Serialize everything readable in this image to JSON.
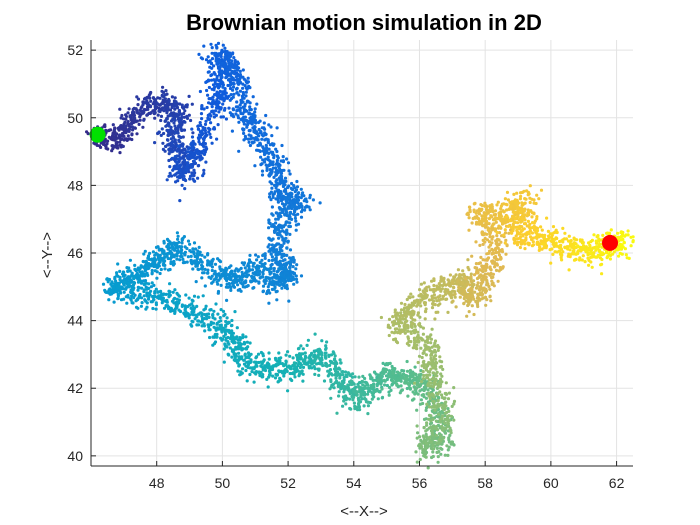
{
  "chart_data": {
    "type": "scatter",
    "title": "Brownian motion simulation in 2D",
    "xlabel": "<--X-->",
    "ylabel": "<--Y-->",
    "xlim": [
      46,
      62.5
    ],
    "ylim": [
      39.7,
      52.3
    ],
    "xticks": [
      48,
      50,
      52,
      54,
      56,
      58,
      60,
      62
    ],
    "yticks": [
      40,
      42,
      44,
      46,
      48,
      50,
      52
    ],
    "grid": true,
    "colormap": "parula",
    "path_waypoints": [
      {
        "x": 46.1,
        "y": 49.5
      },
      {
        "x": 46.8,
        "y": 49.3
      },
      {
        "x": 47.3,
        "y": 50.0
      },
      {
        "x": 48.0,
        "y": 50.5
      },
      {
        "x": 48.7,
        "y": 50.2
      },
      {
        "x": 48.4,
        "y": 49.4
      },
      {
        "x": 48.9,
        "y": 48.8
      },
      {
        "x": 48.8,
        "y": 48.3
      },
      {
        "x": 49.3,
        "y": 49.2
      },
      {
        "x": 49.8,
        "y": 50.4
      },
      {
        "x": 50.0,
        "y": 51.3
      },
      {
        "x": 49.9,
        "y": 51.9
      },
      {
        "x": 50.5,
        "y": 51.2
      },
      {
        "x": 50.7,
        "y": 50.1
      },
      {
        "x": 51.1,
        "y": 49.5
      },
      {
        "x": 51.6,
        "y": 48.6
      },
      {
        "x": 51.8,
        "y": 47.7
      },
      {
        "x": 52.4,
        "y": 47.5
      },
      {
        "x": 51.8,
        "y": 47.0
      },
      {
        "x": 51.6,
        "y": 46.0
      },
      {
        "x": 52.0,
        "y": 45.5
      },
      {
        "x": 51.7,
        "y": 45.0
      },
      {
        "x": 51.0,
        "y": 45.6
      },
      {
        "x": 50.3,
        "y": 45.1
      },
      {
        "x": 49.6,
        "y": 45.6
      },
      {
        "x": 48.6,
        "y": 46.2
      },
      {
        "x": 48.1,
        "y": 45.8
      },
      {
        "x": 47.4,
        "y": 45.3
      },
      {
        "x": 46.6,
        "y": 45.0
      },
      {
        "x": 47.6,
        "y": 44.8
      },
      {
        "x": 48.6,
        "y": 44.5
      },
      {
        "x": 49.6,
        "y": 44.0
      },
      {
        "x": 50.3,
        "y": 43.5
      },
      {
        "x": 50.6,
        "y": 42.8
      },
      {
        "x": 51.5,
        "y": 42.5
      },
      {
        "x": 52.3,
        "y": 42.7
      },
      {
        "x": 53.0,
        "y": 43.0
      },
      {
        "x": 53.6,
        "y": 42.3
      },
      {
        "x": 54.0,
        "y": 41.7
      },
      {
        "x": 54.6,
        "y": 42.1
      },
      {
        "x": 55.2,
        "y": 42.4
      },
      {
        "x": 55.8,
        "y": 42.2
      },
      {
        "x": 56.4,
        "y": 41.8
      },
      {
        "x": 56.7,
        "y": 40.4
      },
      {
        "x": 56.1,
        "y": 40.2
      },
      {
        "x": 56.8,
        "y": 41.2
      },
      {
        "x": 56.4,
        "y": 42.4
      },
      {
        "x": 56.2,
        "y": 43.4
      },
      {
        "x": 55.3,
        "y": 43.9
      },
      {
        "x": 55.9,
        "y": 44.5
      },
      {
        "x": 56.7,
        "y": 44.9
      },
      {
        "x": 57.3,
        "y": 45.2
      },
      {
        "x": 57.6,
        "y": 44.6
      },
      {
        "x": 58.0,
        "y": 45.3
      },
      {
        "x": 58.4,
        "y": 46.2
      },
      {
        "x": 57.8,
        "y": 47.2
      },
      {
        "x": 58.6,
        "y": 47.0
      },
      {
        "x": 59.2,
        "y": 47.6
      },
      {
        "x": 58.9,
        "y": 46.6
      },
      {
        "x": 59.7,
        "y": 46.5
      },
      {
        "x": 60.4,
        "y": 46.2
      },
      {
        "x": 61.2,
        "y": 46.0
      },
      {
        "x": 61.8,
        "y": 46.3
      },
      {
        "x": 62.2,
        "y": 46.3
      }
    ],
    "start_point": {
      "x": 46.2,
      "y": 49.5,
      "color": "#00e000"
    },
    "end_point": {
      "x": 61.8,
      "y": 46.3,
      "color": "#ff0000"
    }
  }
}
